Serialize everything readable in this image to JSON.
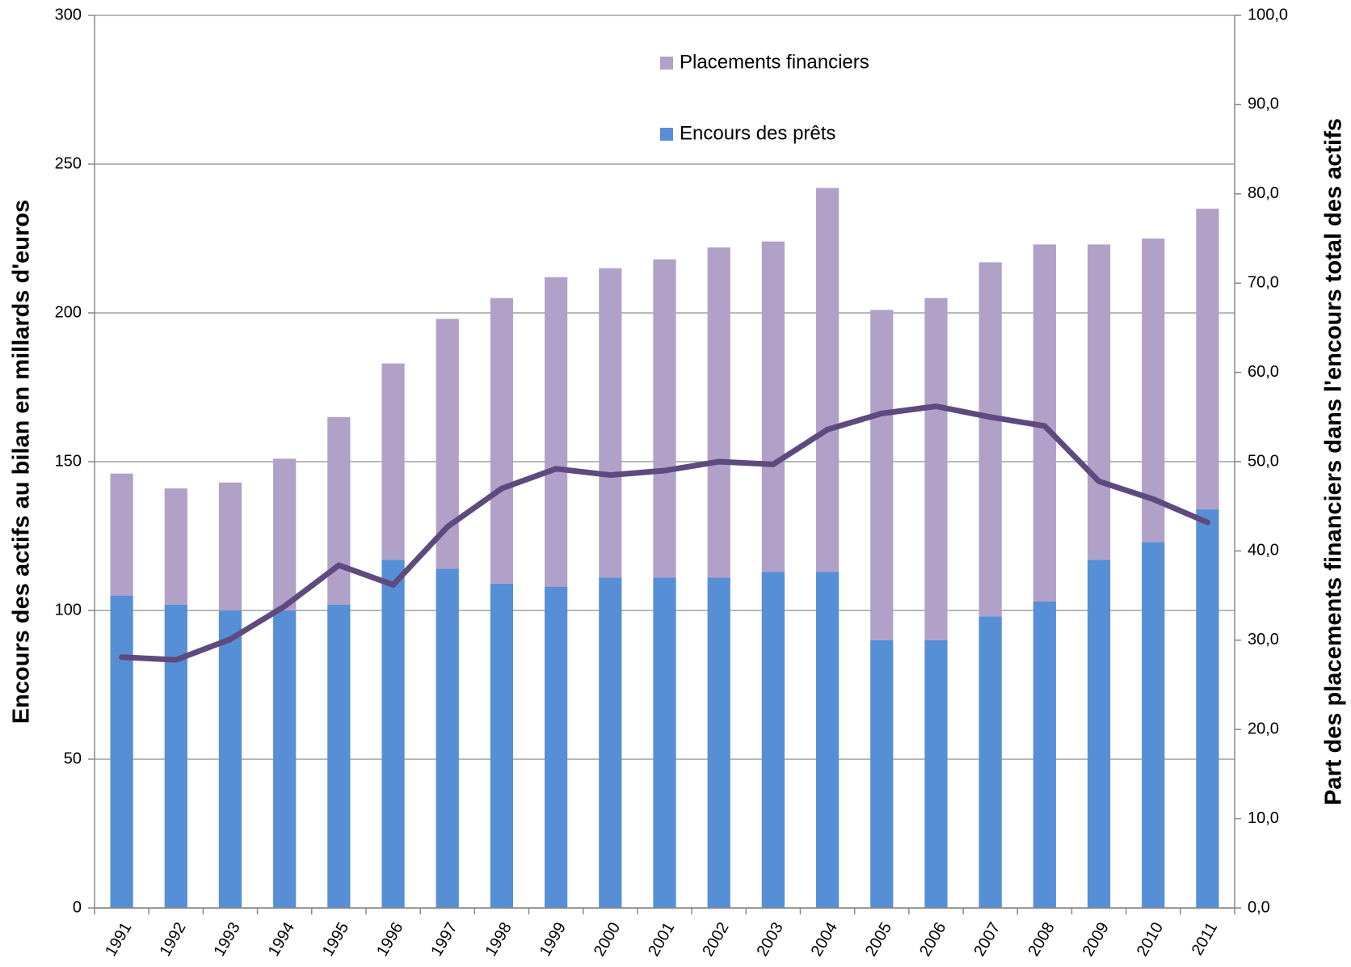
{
  "chart_data": {
    "type": "bar",
    "stacked": true,
    "ylabel": "Encours des actifs au bilan en millards d'euros",
    "y2label": "Part des placements financiers dans l'encours total des actifs",
    "categories": [
      "1991",
      "1992",
      "1993",
      "1994",
      "1995",
      "1996",
      "1997",
      "1998",
      "1999",
      "2000",
      "2001",
      "2002",
      "2003",
      "2004",
      "2005",
      "2006",
      "2007",
      "2008",
      "2009",
      "2010",
      "2011"
    ],
    "series": [
      {
        "name": "Encours des prêts",
        "color": "#568fd5",
        "values": [
          105,
          102,
          100,
          100,
          102,
          117,
          114,
          109,
          108,
          111,
          111,
          111,
          113,
          113,
          90,
          90,
          98,
          103,
          117,
          123,
          134
        ]
      },
      {
        "name": "Placements financiers",
        "color": "#b1a1c8",
        "values": [
          41,
          39,
          43,
          51,
          63,
          66,
          84,
          96,
          104,
          104,
          107,
          111,
          111,
          129,
          111,
          115,
          119,
          120,
          106,
          102,
          101
        ]
      },
      {
        "type": "line",
        "axis": "y2",
        "color": "#5e4a7e",
        "values": [
          28.1,
          27.8,
          30.1,
          33.8,
          38.4,
          36.2,
          42.7,
          47.0,
          49.2,
          48.5,
          49.0,
          50.0,
          49.7,
          53.6,
          55.4,
          56.2,
          55.0,
          54.0,
          47.8,
          45.8,
          43.2
        ]
      }
    ],
    "ylim": [
      0,
      300
    ],
    "yticks": [
      0,
      50,
      100,
      150,
      200,
      250,
      300
    ],
    "y2lim": [
      0,
      100
    ],
    "y2ticks": [
      {
        "value": 0,
        "label": "0,0"
      },
      {
        "value": 10,
        "label": "10,0"
      },
      {
        "value": 20,
        "label": "20,0"
      },
      {
        "value": 30,
        "label": "30,0"
      },
      {
        "value": 40,
        "label": "40,0"
      },
      {
        "value": 50,
        "label": "50,0"
      },
      {
        "value": 60,
        "label": "60,0"
      },
      {
        "value": 70,
        "label": "70,0"
      },
      {
        "value": 80,
        "label": "80,0"
      },
      {
        "value": 90,
        "label": "90,0"
      },
      {
        "value": 100,
        "label": "100,0"
      }
    ],
    "grid": true
  }
}
